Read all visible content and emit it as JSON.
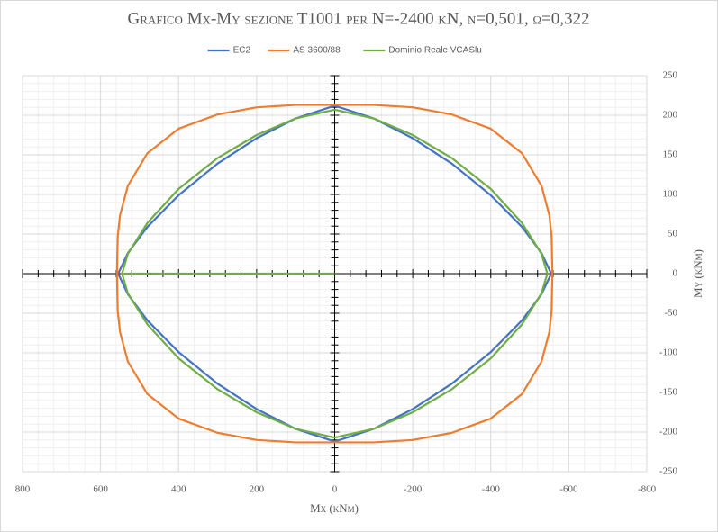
{
  "chart_data": {
    "type": "scatter",
    "title": "Grafico Mx-My sezione T1001 per N=-2400 kN, ν=0,501, ω=0,322",
    "x_label": "Mx (kNm)",
    "y_label": "My (kNm)",
    "xlim": [
      800,
      -800
    ],
    "ylim": [
      -250,
      250
    ],
    "xticks": [
      800,
      600,
      400,
      200,
      0,
      -200,
      -400,
      -600,
      -800
    ],
    "yticks": [
      -250,
      -200,
      -150,
      -100,
      -50,
      0,
      50,
      100,
      150,
      200,
      250
    ],
    "grid": true,
    "legend": "top",
    "series": [
      {
        "name": "EC2",
        "color": "#4472c4",
        "x": [
          555,
          530,
          480,
          400,
          300,
          200,
          100,
          0,
          -100,
          -200,
          -300,
          -400,
          -480,
          -530,
          -555,
          -530,
          -480,
          -400,
          -300,
          -200,
          -100,
          0,
          100,
          200,
          300,
          400,
          480,
          530,
          555
        ],
        "values": [
          0,
          26,
          59,
          99,
          139,
          171,
          196,
          212,
          196,
          171,
          139,
          99,
          59,
          26,
          0,
          -26,
          -59,
          -99,
          -139,
          -171,
          -196,
          -212,
          -196,
          -171,
          -139,
          -99,
          -59,
          -26,
          0
        ]
      },
      {
        "name": "AS 3600/88",
        "color": "#ed7d31",
        "x": [
          558,
          556,
          550,
          530,
          480,
          400,
          300,
          200,
          100,
          0,
          -100,
          -200,
          -300,
          -400,
          -480,
          -530,
          -550,
          -556,
          -558,
          -556,
          -550,
          -530,
          -480,
          -400,
          -300,
          -200,
          -100,
          0,
          100,
          200,
          300,
          400,
          480,
          530,
          550,
          556,
          558
        ],
        "values": [
          0,
          47,
          74,
          111,
          152,
          183,
          201,
          210,
          213,
          213,
          213,
          210,
          201,
          183,
          152,
          111,
          74,
          47,
          0,
          -47,
          -74,
          -111,
          -152,
          -183,
          -201,
          -210,
          -213,
          -213,
          -213,
          -210,
          -201,
          -183,
          -152,
          -111,
          -74,
          -47,
          0
        ]
      },
      {
        "name": "Dominio Reale VCASlu",
        "color": "#70ad47",
        "x": [
          0,
          545,
          530,
          480,
          400,
          300,
          200,
          100,
          0,
          -100,
          -200,
          -300,
          -400,
          -480,
          -530,
          -545,
          -530,
          -480,
          -400,
          -300,
          -200,
          -100,
          0,
          100,
          200,
          300,
          400,
          480,
          530,
          545
        ],
        "values": [
          0,
          0,
          25,
          64,
          107,
          146,
          175,
          196,
          207,
          196,
          175,
          146,
          107,
          64,
          25,
          0,
          -25,
          -64,
          -107,
          -146,
          -175,
          -196,
          -207,
          -196,
          -175,
          -146,
          -107,
          -64,
          -25,
          0
        ]
      }
    ]
  }
}
